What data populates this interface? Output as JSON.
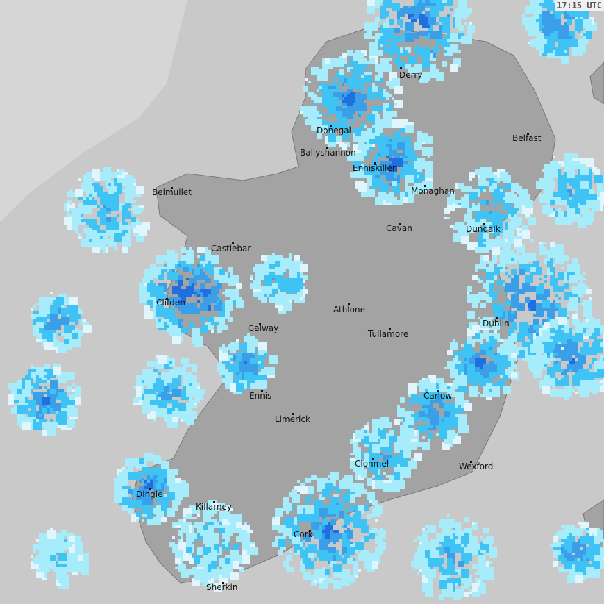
{
  "timestamp": "17:15 UTC",
  "colors": {
    "sea": "#c9c9c9",
    "out_of_range": "#d6d6d6",
    "land": "#a3a3a3",
    "border": "#eeeeee",
    "rain_light": "#e0f6fc",
    "rain_pale": "#a6ecfb",
    "rain_moderate": "#3fc3f5",
    "rain_medium": "#3a9ee8",
    "rain_heavy": "#1f6fe0",
    "rain_very_heavy": "#1030d0"
  },
  "cities": [
    {
      "name": "Derry"
    },
    {
      "name": "Donegal"
    },
    {
      "name": "Ballyshannon"
    },
    {
      "name": "Enniskillen"
    },
    {
      "name": "Belfast"
    },
    {
      "name": "Monaghan"
    },
    {
      "name": "Belmullet"
    },
    {
      "name": "Cavan"
    },
    {
      "name": "Dundalk"
    },
    {
      "name": "Castlebar"
    },
    {
      "name": "Clifden"
    },
    {
      "name": "Athlone"
    },
    {
      "name": "Dublin"
    },
    {
      "name": "Galway"
    },
    {
      "name": "Tullamore"
    },
    {
      "name": "Ennis"
    },
    {
      "name": "Carlow"
    },
    {
      "name": "Limerick"
    },
    {
      "name": "Clonmel"
    },
    {
      "name": "Wexford"
    },
    {
      "name": "Dingle"
    },
    {
      "name": "Killarney"
    },
    {
      "name": "Cork"
    },
    {
      "name": "Sherkin"
    }
  ]
}
